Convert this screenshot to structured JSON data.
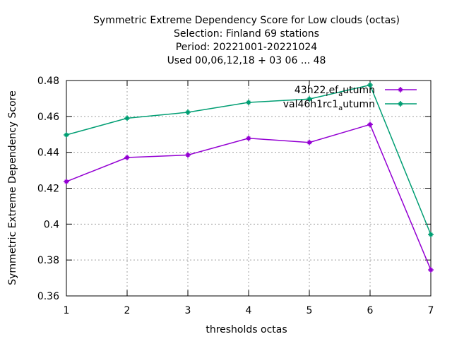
{
  "chart_data": {
    "type": "line",
    "title_lines": [
      "Symmetric Extreme Dependency Score  for Low clouds (octas)",
      "Selection: Finland     69 stations",
      "Period: 20221001-20221024",
      "Used  00,06,12,18  + 03 06 ... 48"
    ],
    "xlabel": "thresholds octas",
    "ylabel": "Symmetric Extreme Dependency Score",
    "x": [
      1,
      2,
      3,
      4,
      5,
      6,
      7
    ],
    "xlim": [
      1,
      7
    ],
    "ylim": [
      0.36,
      0.48
    ],
    "xticks": [
      "1",
      "2",
      "3",
      "4",
      "5",
      "6",
      "7"
    ],
    "yticks": [
      "0.36",
      "0.38",
      "0.4",
      "0.42",
      "0.44",
      "0.46",
      "0.48"
    ],
    "grid": true,
    "legend_position": "top-right",
    "series": [
      {
        "legend_main": "43h22",
        "legend_sub1": "r",
        "legend_mid": "ef",
        "legend_sub2": "a",
        "legend_end": "utumn",
        "color": "#9400d3",
        "values": [
          0.4237,
          0.4371,
          0.4385,
          0.4478,
          0.4455,
          0.4555,
          0.3745
        ]
      },
      {
        "legend_main": "val46h1rc1",
        "legend_sub1": "",
        "legend_mid": "",
        "legend_sub2": "a",
        "legend_end": "utumn",
        "color": "#009e73",
        "values": [
          0.4497,
          0.459,
          0.4623,
          0.4678,
          0.4697,
          0.4775,
          0.3942
        ]
      }
    ]
  }
}
